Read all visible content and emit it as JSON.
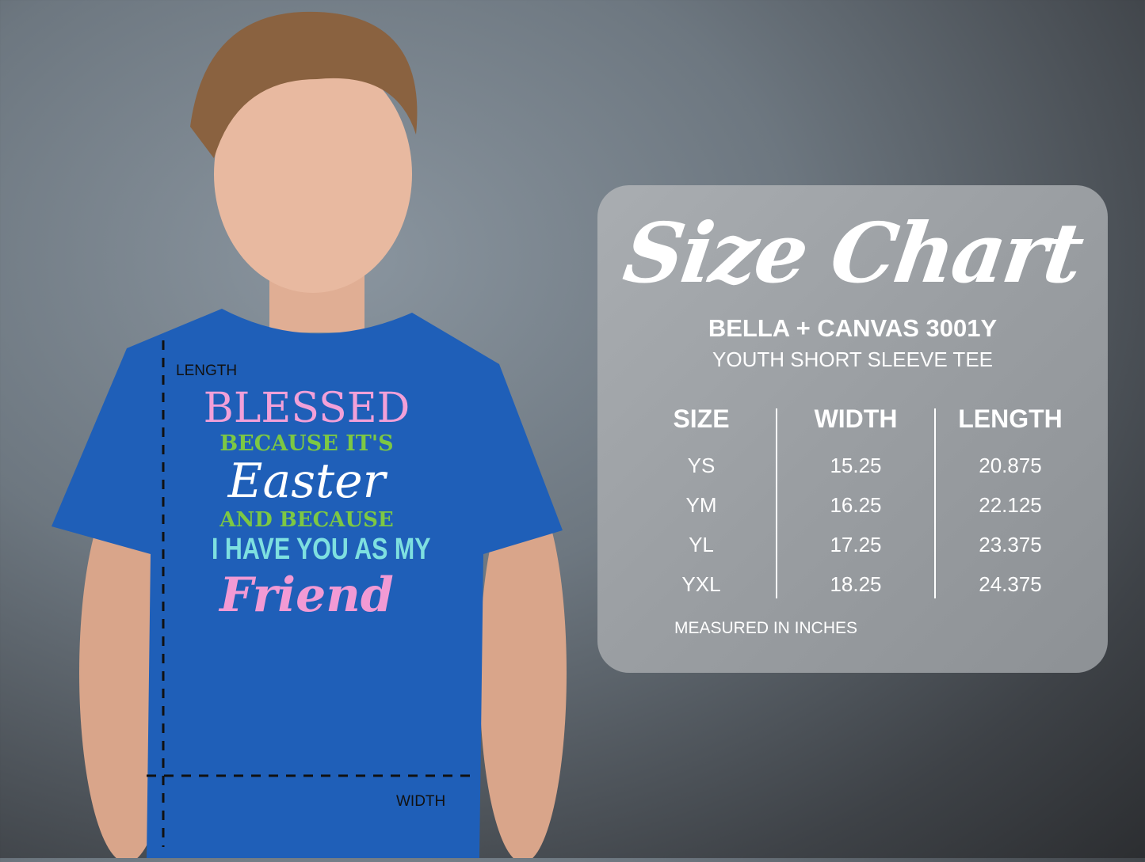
{
  "photo": {
    "shirt_color": "#1f5fb8",
    "shirt_print": {
      "line1": "BLESSED",
      "line2": "BECAUSE IT'S",
      "line3": "Easter",
      "line4": "AND BECAUSE",
      "line5": "I HAVE YOU AS MY",
      "line6": "Friend"
    },
    "measure_labels": {
      "length": "LENGTH",
      "width": "WIDTH"
    }
  },
  "size_chart": {
    "title": "Size Chart",
    "brand": "BELLA + CANVAS 3001Y",
    "subtitle": "YOUTH SHORT SLEEVE TEE",
    "headers": [
      "SIZE",
      "WIDTH",
      "LENGTH"
    ],
    "sizes": [
      "YS",
      "YM",
      "YL",
      "YXL"
    ],
    "widths": [
      "15.25",
      "16.25",
      "17.25",
      "18.25"
    ],
    "lengths": [
      "20.875",
      "22.125",
      "23.375",
      "24.375"
    ],
    "note": "MEASURED IN INCHES"
  }
}
